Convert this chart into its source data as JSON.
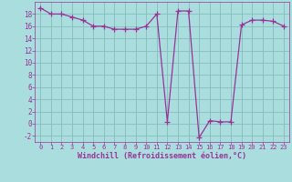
{
  "x": [
    0,
    1,
    2,
    3,
    4,
    5,
    6,
    7,
    8,
    9,
    10,
    11,
    12,
    13,
    14,
    15,
    16,
    17,
    18,
    19,
    20,
    21,
    22,
    23
  ],
  "y": [
    19,
    18,
    18,
    17.5,
    17,
    16,
    16,
    15.5,
    15.5,
    15.5,
    16,
    18,
    0.3,
    18.5,
    18.5,
    -2.3,
    0.5,
    0.3,
    0.3,
    16.2,
    17,
    17,
    16.8,
    16
  ],
  "line_color": "#993399",
  "marker": "+",
  "bg_color": "#aadddd",
  "grid_color": "#88bbbb",
  "xlabel": "Windchill (Refroidissement éolien,°C)",
  "ylim": [
    -3,
    20
  ],
  "xlim": [
    -0.5,
    23.5
  ],
  "yticks": [
    -2,
    0,
    2,
    4,
    6,
    8,
    10,
    12,
    14,
    16,
    18
  ],
  "xticks": [
    0,
    1,
    2,
    3,
    4,
    5,
    6,
    7,
    8,
    9,
    10,
    11,
    12,
    13,
    14,
    15,
    16,
    17,
    18,
    19,
    20,
    21,
    22,
    23
  ],
  "tick_color": "#993399",
  "label_color": "#993399"
}
